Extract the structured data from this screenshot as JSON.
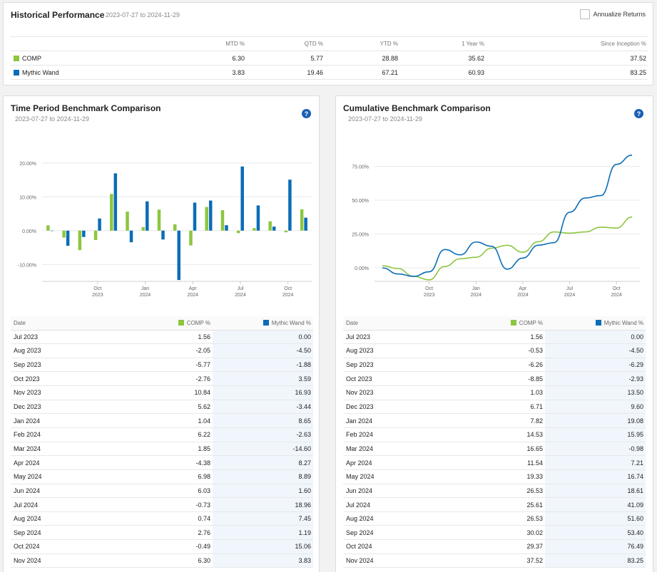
{
  "historical": {
    "title": "Historical Performance",
    "daterange": "2023-07-27 to 2024-11-29",
    "annualize_label": "Annualize Returns",
    "columns": [
      "MTD %",
      "QTD %",
      "YTD %",
      "1 Year %",
      "Since Inception %"
    ],
    "rows": [
      {
        "name": "COMP",
        "color": "#8dc63f",
        "values": [
          "6.30",
          "5.77",
          "28.88",
          "35.62",
          "37.52"
        ]
      },
      {
        "name": "Mythic Wand",
        "color": "#0b6db7",
        "values": [
          "3.83",
          "19.46",
          "67.21",
          "60.93",
          "83.25"
        ]
      }
    ]
  },
  "left_panel": {
    "title": "Time Period Benchmark Comparison",
    "daterange": "2023-07-27 to 2024-11-29",
    "help_label": "?",
    "headers": {
      "date": "Date",
      "comp": "COMP %",
      "wand": "Mythic Wand %"
    }
  },
  "right_panel": {
    "title": "Cumulative Benchmark Comparison",
    "daterange": "2023-07-27 to 2024-11-29",
    "help_label": "?",
    "headers": {
      "date": "Date",
      "comp": "COMP %",
      "wand": "Mythic Wand %"
    }
  },
  "colors": {
    "comp": "#8dc63f",
    "wand": "#0b6db7"
  },
  "chart_data": [
    {
      "type": "bar",
      "title": "Time Period Benchmark Comparison",
      "categories": [
        "Jul 2023",
        "Aug 2023",
        "Sep 2023",
        "Oct 2023",
        "Nov 2023",
        "Dec 2023",
        "Jan 2024",
        "Feb 2024",
        "Mar 2024",
        "Apr 2024",
        "May 2024",
        "Jun 2024",
        "Jul 2024",
        "Aug 2024",
        "Sep 2024",
        "Oct 2024",
        "Nov 2024"
      ],
      "series": [
        {
          "name": "COMP",
          "values": [
            1.56,
            -2.05,
            -5.77,
            -2.76,
            10.84,
            5.62,
            1.04,
            6.22,
            1.85,
            -4.38,
            6.98,
            6.03,
            -0.73,
            0.74,
            2.76,
            -0.49,
            6.3
          ]
        },
        {
          "name": "Mythic Wand",
          "values": [
            0.0,
            -4.5,
            -1.88,
            3.59,
            16.93,
            -3.44,
            8.65,
            -2.63,
            -14.6,
            8.27,
            8.89,
            1.6,
            18.96,
            7.45,
            1.19,
            15.06,
            3.83
          ]
        }
      ],
      "ylim": [
        -15,
        25
      ],
      "yticks": [
        "20.00%",
        "10.00%",
        "0.00%",
        "-10.00%"
      ],
      "xticks": [
        {
          "label": "Oct",
          "sub": "2023"
        },
        {
          "label": "Jan",
          "sub": "2024"
        },
        {
          "label": "Apr",
          "sub": "2024"
        },
        {
          "label": "Jul",
          "sub": "2024"
        },
        {
          "label": "Oct",
          "sub": "2024"
        }
      ],
      "legend": "none",
      "grid": true
    },
    {
      "type": "line",
      "title": "Cumulative Benchmark Comparison",
      "categories": [
        "Jul 2023",
        "Aug 2023",
        "Sep 2023",
        "Oct 2023",
        "Nov 2023",
        "Dec 2023",
        "Jan 2024",
        "Feb 2024",
        "Mar 2024",
        "Apr 2024",
        "May 2024",
        "Jun 2024",
        "Jul 2024",
        "Aug 2024",
        "Sep 2024",
        "Oct 2024",
        "Nov 2024"
      ],
      "series": [
        {
          "name": "COMP",
          "values": [
            1.56,
            -0.53,
            -6.26,
            -8.85,
            1.03,
            6.71,
            7.82,
            14.53,
            16.65,
            11.54,
            19.33,
            26.53,
            25.61,
            26.53,
            30.02,
            29.37,
            37.52
          ]
        },
        {
          "name": "Mythic Wand",
          "values": [
            0.0,
            -4.5,
            -6.29,
            -2.93,
            13.5,
            9.6,
            19.08,
            15.95,
            -0.98,
            7.21,
            16.74,
            18.61,
            41.09,
            51.6,
            53.4,
            76.49,
            83.25
          ]
        }
      ],
      "ylim": [
        -10,
        90
      ],
      "yticks": [
        "75.00%",
        "50.00%",
        "25.00%",
        "0.00%"
      ],
      "xticks": [
        {
          "label": "Oct",
          "sub": "2023"
        },
        {
          "label": "Jan",
          "sub": "2024"
        },
        {
          "label": "Apr",
          "sub": "2024"
        },
        {
          "label": "Jul",
          "sub": "2024"
        },
        {
          "label": "Oct",
          "sub": "2024"
        }
      ],
      "legend": "none",
      "grid": true
    }
  ],
  "tables": {
    "period": [
      [
        "Jul 2023",
        "1.56",
        "0.00"
      ],
      [
        "Aug 2023",
        "-2.05",
        "-4.50"
      ],
      [
        "Sep 2023",
        "-5.77",
        "-1.88"
      ],
      [
        "Oct 2023",
        "-2.76",
        "3.59"
      ],
      [
        "Nov 2023",
        "10.84",
        "16.93"
      ],
      [
        "Dec 2023",
        "5.62",
        "-3.44"
      ],
      [
        "Jan 2024",
        "1.04",
        "8.65"
      ],
      [
        "Feb 2024",
        "6.22",
        "-2.63"
      ],
      [
        "Mar 2024",
        "1.85",
        "-14.60"
      ],
      [
        "Apr 2024",
        "-4.38",
        "8.27"
      ],
      [
        "May 2024",
        "6.98",
        "8.89"
      ],
      [
        "Jun 2024",
        "6.03",
        "1.60"
      ],
      [
        "Jul 2024",
        "-0.73",
        "18.96"
      ],
      [
        "Aug 2024",
        "0.74",
        "7.45"
      ],
      [
        "Sep 2024",
        "2.76",
        "1.19"
      ],
      [
        "Oct 2024",
        "-0.49",
        "15.06"
      ],
      [
        "Nov 2024",
        "6.30",
        "3.83"
      ]
    ],
    "cumulative": [
      [
        "Jul 2023",
        "1.56",
        "0.00"
      ],
      [
        "Aug 2023",
        "-0.53",
        "-4.50"
      ],
      [
        "Sep 2023",
        "-6.26",
        "-6.29"
      ],
      [
        "Oct 2023",
        "-8.85",
        "-2.93"
      ],
      [
        "Nov 2023",
        "1.03",
        "13.50"
      ],
      [
        "Dec 2023",
        "6.71",
        "9.60"
      ],
      [
        "Jan 2024",
        "7.82",
        "19.08"
      ],
      [
        "Feb 2024",
        "14.53",
        "15.95"
      ],
      [
        "Mar 2024",
        "16.65",
        "-0.98"
      ],
      [
        "Apr 2024",
        "11.54",
        "7.21"
      ],
      [
        "May 2024",
        "19.33",
        "16.74"
      ],
      [
        "Jun 2024",
        "26.53",
        "18.61"
      ],
      [
        "Jul 2024",
        "25.61",
        "41.09"
      ],
      [
        "Aug 2024",
        "26.53",
        "51.60"
      ],
      [
        "Sep 2024",
        "30.02",
        "53.40"
      ],
      [
        "Oct 2024",
        "29.37",
        "76.49"
      ],
      [
        "Nov 2024",
        "37.52",
        "83.25"
      ]
    ]
  }
}
